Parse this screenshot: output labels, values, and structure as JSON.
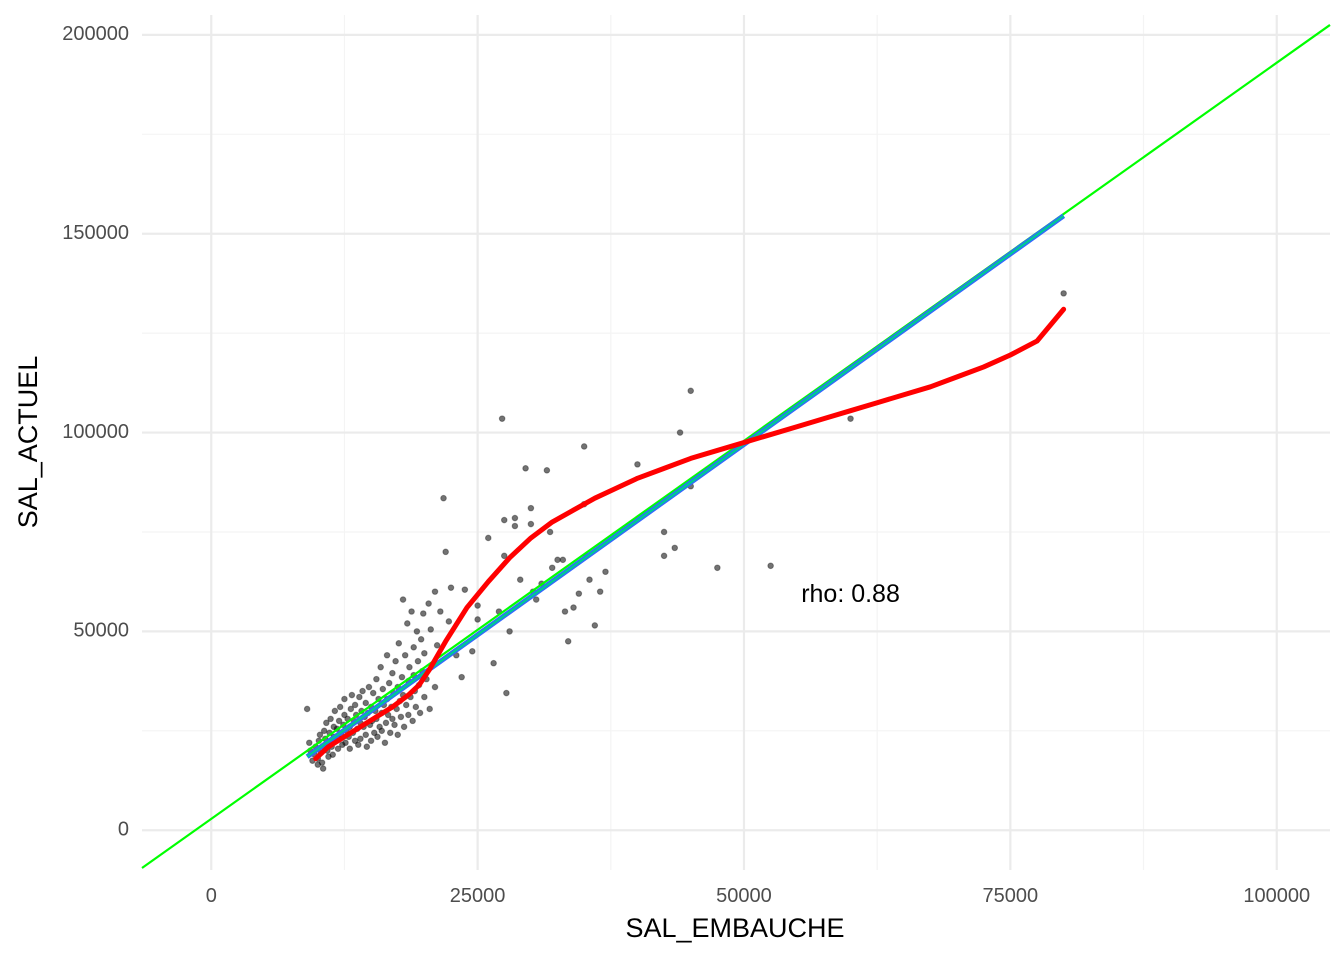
{
  "chart_data": {
    "type": "scatter",
    "xlabel": "SAL_EMBAUCHE",
    "ylabel": "SAL_ACTUEL",
    "xlim": [
      -6500,
      105000
    ],
    "ylim": [
      -10000,
      205000
    ],
    "x_ticks": [
      0,
      25000,
      50000,
      75000,
      100000
    ],
    "y_ticks": [
      0,
      50000,
      100000,
      150000,
      200000
    ],
    "x_tick_labels": [
      "0",
      "25000",
      "50000",
      "75000",
      "100000"
    ],
    "y_tick_labels": [
      "0",
      "50000",
      "100000",
      "150000",
      "200000"
    ],
    "grid": true,
    "annotation": {
      "text": "rho: 0.88",
      "x": 60000,
      "y": 59000
    },
    "colors": {
      "points": "#000000",
      "loess": "#ff0000",
      "ols": "#00c896",
      "identity_like": "#00ff00",
      "grid_major": "#ebebeb",
      "grid_minor": "#f4f4f4"
    },
    "series": [
      {
        "kind": "points",
        "points": [
          [
            9000,
            30500
          ],
          [
            9200,
            22000
          ],
          [
            9300,
            20000
          ],
          [
            9500,
            17500
          ],
          [
            9700,
            19000
          ],
          [
            9800,
            21000
          ],
          [
            10000,
            16500
          ],
          [
            10000,
            18000
          ],
          [
            10100,
            22500
          ],
          [
            10200,
            24000
          ],
          [
            10300,
            19500
          ],
          [
            10400,
            17000
          ],
          [
            10500,
            15500
          ],
          [
            10500,
            21000
          ],
          [
            10600,
            25000
          ],
          [
            10700,
            23000
          ],
          [
            10800,
            27000
          ],
          [
            10900,
            20000
          ],
          [
            11000,
            18500
          ],
          [
            11000,
            22000
          ],
          [
            11100,
            24500
          ],
          [
            11200,
            28000
          ],
          [
            11300,
            21000
          ],
          [
            11400,
            19000
          ],
          [
            11500,
            23500
          ],
          [
            11500,
            26000
          ],
          [
            11600,
            30000
          ],
          [
            11700,
            22500
          ],
          [
            11800,
            25500
          ],
          [
            11900,
            20500
          ],
          [
            12000,
            23000
          ],
          [
            12000,
            27500
          ],
          [
            12100,
            31000
          ],
          [
            12200,
            24000
          ],
          [
            12300,
            21500
          ],
          [
            12400,
            26500
          ],
          [
            12500,
            29000
          ],
          [
            12500,
            33000
          ],
          [
            12600,
            22000
          ],
          [
            12700,
            25000
          ],
          [
            12800,
            28000
          ],
          [
            12900,
            23500
          ],
          [
            13000,
            20500
          ],
          [
            13000,
            26000
          ],
          [
            13100,
            30500
          ],
          [
            13200,
            34000
          ],
          [
            13300,
            24500
          ],
          [
            13400,
            27500
          ],
          [
            13500,
            22500
          ],
          [
            13500,
            31500
          ],
          [
            13600,
            29000
          ],
          [
            13700,
            25500
          ],
          [
            13800,
            21500
          ],
          [
            13900,
            33500
          ],
          [
            14000,
            27000
          ],
          [
            14000,
            23000
          ],
          [
            14100,
            30000
          ],
          [
            14200,
            35000
          ],
          [
            14300,
            26000
          ],
          [
            14400,
            28500
          ],
          [
            14500,
            24000
          ],
          [
            14500,
            32000
          ],
          [
            14600,
            21000
          ],
          [
            14700,
            29500
          ],
          [
            14800,
            36000
          ],
          [
            14900,
            26500
          ],
          [
            15000,
            31000
          ],
          [
            15000,
            22500
          ],
          [
            15100,
            27500
          ],
          [
            15200,
            34500
          ],
          [
            15300,
            24500
          ],
          [
            15400,
            30000
          ],
          [
            15500,
            38000
          ],
          [
            15500,
            28000
          ],
          [
            15600,
            23500
          ],
          [
            15700,
            33000
          ],
          [
            15800,
            26000
          ],
          [
            15900,
            41000
          ],
          [
            16000,
            29500
          ],
          [
            16000,
            25000
          ],
          [
            16100,
            35500
          ],
          [
            16200,
            31500
          ],
          [
            16300,
            22000
          ],
          [
            16400,
            27000
          ],
          [
            16500,
            44000
          ],
          [
            16500,
            33000
          ],
          [
            16600,
            29000
          ],
          [
            16700,
            37000
          ],
          [
            16800,
            24500
          ],
          [
            16900,
            31000
          ],
          [
            17000,
            39500
          ],
          [
            17000,
            28000
          ],
          [
            17100,
            34500
          ],
          [
            17200,
            26500
          ],
          [
            17300,
            42500
          ],
          [
            17400,
            30500
          ],
          [
            17500,
            36000
          ],
          [
            17500,
            24000
          ],
          [
            17600,
            47000
          ],
          [
            17700,
            32500
          ],
          [
            17800,
            28500
          ],
          [
            17900,
            38500
          ],
          [
            18000,
            58000
          ],
          [
            18000,
            34000
          ],
          [
            18100,
            26000
          ],
          [
            18200,
            44000
          ],
          [
            18300,
            31500
          ],
          [
            18400,
            52000
          ],
          [
            18500,
            37500
          ],
          [
            18500,
            29000
          ],
          [
            18600,
            41000
          ],
          [
            18700,
            33500
          ],
          [
            18800,
            55000
          ],
          [
            18900,
            27500
          ],
          [
            19000,
            39000
          ],
          [
            19000,
            46000
          ],
          [
            19100,
            35000
          ],
          [
            19200,
            31000
          ],
          [
            19300,
            50000
          ],
          [
            19400,
            42500
          ],
          [
            19500,
            36500
          ],
          [
            19600,
            29500
          ],
          [
            19700,
            48000
          ],
          [
            19800,
            40000
          ],
          [
            19900,
            54500
          ],
          [
            20000,
            33500
          ],
          [
            20000,
            44500
          ],
          [
            20200,
            38000
          ],
          [
            20400,
            57000
          ],
          [
            20500,
            30500
          ],
          [
            20600,
            50500
          ],
          [
            20800,
            41500
          ],
          [
            21000,
            60000
          ],
          [
            21000,
            36000
          ],
          [
            21200,
            46500
          ],
          [
            21500,
            55000
          ],
          [
            21800,
            83500
          ],
          [
            22000,
            70000
          ],
          [
            22300,
            52500
          ],
          [
            22500,
            61000
          ],
          [
            23000,
            44000
          ],
          [
            23500,
            38500
          ],
          [
            23800,
            60500
          ],
          [
            24500,
            45000
          ],
          [
            25000,
            56500
          ],
          [
            25000,
            53000
          ],
          [
            26000,
            73500
          ],
          [
            26500,
            42000
          ],
          [
            27000,
            55000
          ],
          [
            27300,
            103500
          ],
          [
            27500,
            78000
          ],
          [
            27500,
            69000
          ],
          [
            27700,
            34500
          ],
          [
            28000,
            50000
          ],
          [
            28500,
            78500
          ],
          [
            28500,
            76500
          ],
          [
            29000,
            63000
          ],
          [
            29500,
            91000
          ],
          [
            30000,
            81000
          ],
          [
            30000,
            77000
          ],
          [
            30200,
            60000
          ],
          [
            30500,
            58000
          ],
          [
            31000,
            62000
          ],
          [
            31500,
            90500
          ],
          [
            31800,
            75000
          ],
          [
            32000,
            66000
          ],
          [
            32500,
            68000
          ],
          [
            33000,
            68000
          ],
          [
            33200,
            55000
          ],
          [
            33500,
            47500
          ],
          [
            34000,
            56000
          ],
          [
            34500,
            59500
          ],
          [
            35000,
            96500
          ],
          [
            35000,
            82000
          ],
          [
            35200,
            69000
          ],
          [
            35500,
            63000
          ],
          [
            36000,
            51500
          ],
          [
            36500,
            60000
          ],
          [
            37000,
            65000
          ],
          [
            40000,
            92000
          ],
          [
            42500,
            75000
          ],
          [
            42500,
            69000
          ],
          [
            43500,
            71000
          ],
          [
            44000,
            100000
          ],
          [
            45000,
            110500
          ],
          [
            45000,
            86500
          ],
          [
            47500,
            66000
          ],
          [
            52500,
            66500
          ],
          [
            60000,
            103500
          ],
          [
            80000,
            135000
          ]
        ]
      },
      {
        "kind": "loess",
        "points": [
          [
            9800,
            18000
          ],
          [
            11000,
            21000
          ],
          [
            12500,
            23500
          ],
          [
            14000,
            26000
          ],
          [
            15500,
            28500
          ],
          [
            17000,
            31000
          ],
          [
            18500,
            34000
          ],
          [
            19500,
            36500
          ],
          [
            20500,
            40500
          ],
          [
            22000,
            47500
          ],
          [
            24000,
            56000
          ],
          [
            26000,
            62500
          ],
          [
            28000,
            68500
          ],
          [
            30000,
            73500
          ],
          [
            32000,
            77500
          ],
          [
            34000,
            80500
          ],
          [
            36000,
            83500
          ],
          [
            38000,
            86000
          ],
          [
            40000,
            88500
          ],
          [
            42500,
            91000
          ],
          [
            45000,
            93500
          ],
          [
            47500,
            95500
          ],
          [
            50000,
            97500
          ],
          [
            52500,
            99500
          ],
          [
            55000,
            101500
          ],
          [
            57500,
            103500
          ],
          [
            60000,
            105500
          ],
          [
            62500,
            107500
          ],
          [
            65000,
            109500
          ],
          [
            67500,
            111500
          ],
          [
            70000,
            114000
          ],
          [
            72500,
            116500
          ],
          [
            75000,
            119500
          ],
          [
            77500,
            123000
          ],
          [
            80000,
            131000
          ]
        ]
      },
      {
        "kind": "ols",
        "points": [
          [
            9000,
            18500
          ],
          [
            80000,
            154500
          ]
        ]
      },
      {
        "kind": "identity_like",
        "points": [
          [
            -6500,
            -9500
          ],
          [
            105000,
            202500
          ]
        ]
      }
    ]
  }
}
